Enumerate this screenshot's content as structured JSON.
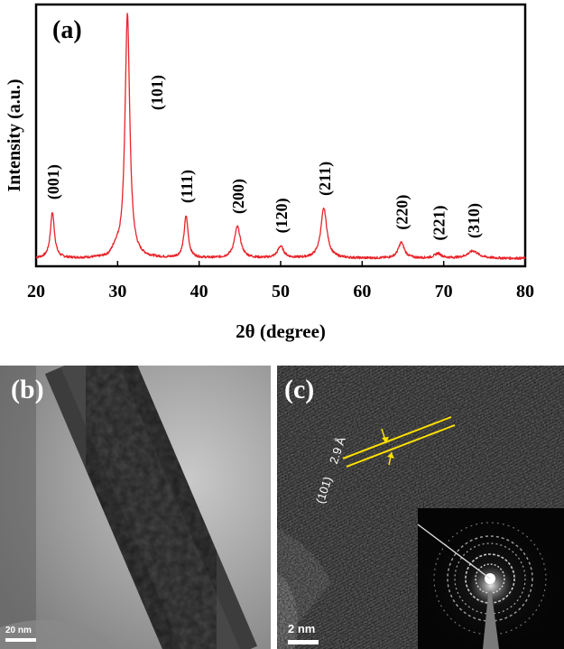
{
  "chart_data": {
    "type": "line",
    "panel_label": "(a)",
    "title": "",
    "xlabel": "2θ (degree)",
    "ylabel": "Intensity (a.u.)",
    "xlim": [
      20,
      80
    ],
    "ylim": [
      0,
      100
    ],
    "x_ticks": [
      20,
      30,
      40,
      50,
      60,
      70,
      80
    ],
    "y_ticks_shown": false,
    "grid": false,
    "line_color": "#e8242a",
    "baseline": 3,
    "peaks": [
      {
        "label": "(001)",
        "x": 22.0,
        "height": 17.5,
        "width": 0.3
      },
      {
        "label": "(101)",
        "x": 31.2,
        "height": 93.5,
        "width": 0.35
      },
      {
        "label": "(111)",
        "x": 38.4,
        "height": 16.0,
        "width": 0.3
      },
      {
        "label": "(200)",
        "x": 44.7,
        "height": 12.0,
        "width": 0.45
      },
      {
        "label": "(120)",
        "x": 50.0,
        "height": 4.5,
        "width": 0.45
      },
      {
        "label": "(211)",
        "x": 55.3,
        "height": 19.0,
        "width": 0.45
      },
      {
        "label": "(220)",
        "x": 64.8,
        "height": 6.0,
        "width": 0.45
      },
      {
        "label": "(221)",
        "x": 69.3,
        "height": 1.8,
        "width": 0.5
      },
      {
        "label": "(310)",
        "x": 73.6,
        "height": 2.8,
        "width": 0.8
      }
    ]
  },
  "panels": {
    "b": {
      "label": "(b)",
      "scale_bar": "20 nm"
    },
    "c": {
      "label": "(c)",
      "scale_bar": "2 nm",
      "d_spacing": "2.9 Å",
      "plane": "(101)"
    }
  },
  "colors": {
    "annotation": "#ffe100",
    "label_text": "#ffffff"
  }
}
